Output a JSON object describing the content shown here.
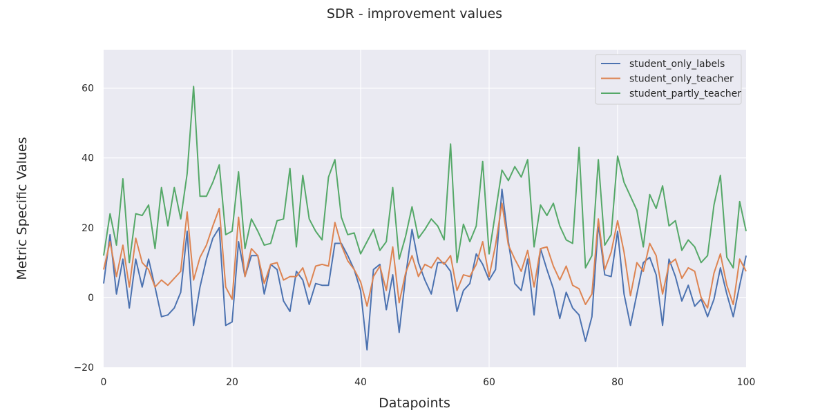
{
  "chart_data": {
    "type": "line",
    "title": "SDR - improvement values",
    "xlabel": "Datapoints",
    "ylabel": "Metric Specific Values",
    "xlim": [
      0,
      100
    ],
    "ylim": [
      -20,
      71
    ],
    "xticks": [
      0,
      20,
      40,
      60,
      80,
      100
    ],
    "yticks": [
      -20,
      0,
      20,
      40,
      60
    ],
    "grid": true,
    "legend_position": "top-right",
    "series": [
      {
        "name": "student_only_labels",
        "color": "#4c72b0",
        "values": [
          4,
          18,
          1,
          11,
          -3,
          11,
          3,
          11,
          3,
          -5.5,
          -5,
          -3,
          1.5,
          19,
          -8,
          3,
          11,
          17,
          20,
          -8,
          -7,
          16,
          6,
          12,
          12,
          1,
          9.5,
          8,
          -1,
          -4,
          7.5,
          5,
          -2,
          4,
          3.5,
          3.5,
          15.5,
          15.5,
          12,
          8,
          2,
          -15,
          8,
          9.5,
          -3.5,
          6.5,
          -10,
          6,
          19.5,
          10,
          5,
          1,
          10,
          10,
          7.5,
          -4,
          2,
          4,
          12.5,
          9.5,
          5,
          8,
          31,
          16,
          4,
          2,
          11,
          -5,
          14,
          8,
          2.5,
          -6,
          1.5,
          -3,
          -5,
          -12.5,
          -5.5,
          21,
          6.5,
          6,
          19,
          1,
          -8,
          1,
          10,
          11.5,
          6.5,
          -8,
          11,
          6,
          -1,
          3.5,
          -2.5,
          -0.5,
          -5.5,
          -0.5,
          8.5,
          1,
          -5.5,
          3.5,
          12
        ]
      },
      {
        "name": "student_only_teacher",
        "color": "#dd8452",
        "values": [
          8,
          16,
          6,
          15,
          3,
          17,
          10,
          8,
          3,
          5,
          3.5,
          5.5,
          7.5,
          24.5,
          5,
          11.5,
          15,
          20.5,
          25.5,
          3,
          -0.5,
          23,
          6,
          14,
          12,
          4,
          9.5,
          10,
          5,
          6,
          6,
          8.5,
          3,
          9,
          9.5,
          9,
          21.5,
          15,
          10.5,
          8,
          4.5,
          -2.5,
          6,
          9,
          2,
          14.5,
          -1.5,
          7,
          12,
          6,
          9.5,
          8.5,
          11.5,
          9.5,
          12,
          2,
          6.5,
          6,
          9.5,
          16,
          6,
          15,
          27,
          15,
          11,
          7.5,
          13.5,
          3,
          14,
          14.5,
          9,
          5,
          9,
          3.5,
          2.5,
          -2,
          1,
          22.5,
          8,
          13,
          22,
          13,
          0.5,
          10,
          7.5,
          15.5,
          12,
          1,
          9.5,
          11,
          5.5,
          8.5,
          7.5,
          0,
          -3,
          7,
          12.5,
          3.5,
          -2,
          11,
          7.5
        ]
      },
      {
        "name": "student_partly_teacher",
        "color": "#55a868",
        "values": [
          12,
          24,
          15,
          34,
          10,
          24,
          23.5,
          26.5,
          14,
          31.5,
          20.5,
          31.5,
          22.5,
          35.5,
          60.5,
          29,
          29,
          33,
          38,
          18,
          19,
          36,
          14,
          22.5,
          19,
          15,
          15.5,
          22,
          22.5,
          37,
          14.5,
          35,
          22.5,
          19,
          16.5,
          34.5,
          39.5,
          23,
          18,
          18.5,
          12.5,
          16,
          19.5,
          13.5,
          16,
          31.5,
          11,
          17.5,
          26,
          17,
          19.5,
          22.5,
          20.5,
          16.5,
          44,
          10,
          21,
          16,
          20.5,
          39,
          12.5,
          24.5,
          36.5,
          33.5,
          37.5,
          34.5,
          39.5,
          14.5,
          26.5,
          23.5,
          27,
          20.5,
          16.5,
          15.5,
          43,
          8.5,
          12,
          39.5,
          15,
          18,
          40.5,
          33,
          29,
          25,
          14.5,
          29.5,
          25.5,
          32,
          20.5,
          22,
          13.5,
          16.5,
          14.5,
          10,
          12,
          26.5,
          35,
          11.5,
          8.5,
          27.5,
          19
        ]
      }
    ]
  }
}
